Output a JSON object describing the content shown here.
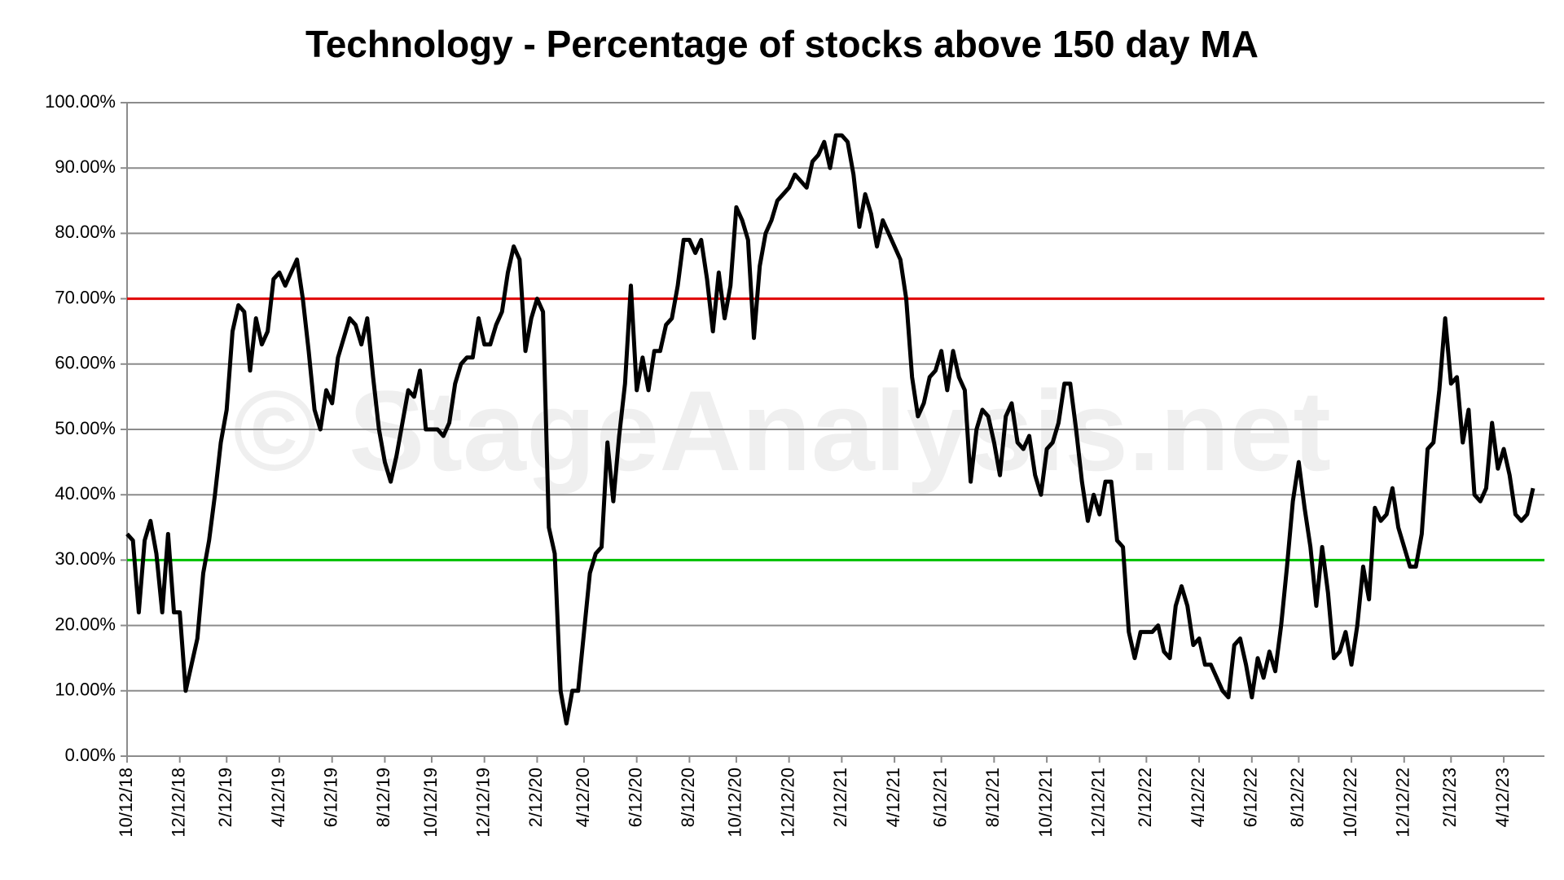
{
  "chart_data": {
    "type": "line",
    "title": "Technology - Percentage of stocks above 150 day MA",
    "watermark": "© StageAnalysis.net",
    "categories": [
      "10/12/18",
      null,
      null,
      null,
      null,
      null,
      null,
      null,
      null,
      "12/12/18",
      null,
      null,
      null,
      null,
      null,
      null,
      null,
      "2/12/19",
      null,
      null,
      null,
      null,
      null,
      null,
      null,
      null,
      "4/12/19",
      null,
      null,
      null,
      null,
      null,
      null,
      null,
      null,
      "6/12/19",
      null,
      null,
      null,
      null,
      null,
      null,
      null,
      null,
      "8/12/19",
      null,
      null,
      null,
      null,
      null,
      null,
      null,
      "10/12/19",
      null,
      null,
      null,
      null,
      null,
      null,
      null,
      null,
      "12/12/19",
      null,
      null,
      null,
      null,
      null,
      null,
      null,
      null,
      "2/12/20",
      null,
      null,
      null,
      null,
      null,
      null,
      null,
      "4/12/20",
      null,
      null,
      null,
      null,
      null,
      null,
      null,
      null,
      "6/12/20",
      null,
      null,
      null,
      null,
      null,
      null,
      null,
      null,
      "8/12/20",
      null,
      null,
      null,
      null,
      null,
      null,
      null,
      "10/12/20",
      null,
      null,
      null,
      null,
      null,
      null,
      null,
      null,
      "12/12/20",
      null,
      null,
      null,
      null,
      null,
      null,
      null,
      null,
      "2/12/21",
      null,
      null,
      null,
      null,
      null,
      null,
      null,
      null,
      "4/12/21",
      null,
      null,
      null,
      null,
      null,
      null,
      null,
      "6/12/21",
      null,
      null,
      null,
      null,
      null,
      null,
      null,
      null,
      "8/12/21",
      null,
      null,
      null,
      null,
      null,
      null,
      null,
      null,
      "10/12/21",
      null,
      null,
      null,
      null,
      null,
      null,
      null,
      null,
      "12/12/21",
      null,
      null,
      null,
      null,
      null,
      null,
      null,
      "2/12/22",
      null,
      null,
      null,
      null,
      null,
      null,
      null,
      null,
      "4/12/22",
      null,
      null,
      null,
      null,
      null,
      null,
      null,
      null,
      "6/12/22",
      null,
      null,
      null,
      null,
      null,
      null,
      null,
      "8/12/22",
      null,
      null,
      null,
      null,
      null,
      null,
      null,
      null,
      "10/12/22",
      null,
      null,
      null,
      null,
      null,
      null,
      null,
      null,
      "12/12/22",
      null,
      null,
      null,
      null,
      null,
      null,
      null,
      "2/12/23",
      null,
      null,
      null,
      null,
      null,
      null,
      null,
      null,
      "4/12/23",
      null,
      null,
      null,
      null,
      null
    ],
    "series": [
      {
        "name": "Technology",
        "color": "#000000",
        "values": [
          34,
          33,
          22,
          33,
          36,
          31,
          22,
          34,
          22,
          22,
          10,
          14,
          18,
          28,
          33,
          40,
          48,
          53,
          65,
          69,
          68,
          59,
          67,
          63,
          65,
          73,
          74,
          72,
          74,
          76,
          70,
          62,
          53,
          50,
          56,
          54,
          61,
          64,
          67,
          66,
          63,
          67,
          58,
          50,
          45,
          42,
          46,
          51,
          56,
          55,
          59,
          50,
          50,
          50,
          49,
          51,
          57,
          60,
          61,
          61,
          67,
          63,
          63,
          66,
          68,
          74,
          78,
          76,
          62,
          67,
          70,
          68,
          35,
          31,
          10,
          5,
          10,
          10,
          19,
          28,
          31,
          32,
          48,
          39,
          49,
          57,
          72,
          56,
          61,
          56,
          62,
          62,
          66,
          67,
          72,
          79,
          79,
          77,
          79,
          73,
          65,
          74,
          67,
          72,
          84,
          82,
          79,
          64,
          75,
          80,
          82,
          85,
          86,
          87,
          89,
          88,
          87,
          91,
          92,
          94,
          90,
          95,
          95,
          94,
          89,
          81,
          86,
          83,
          78,
          82,
          80,
          78,
          76,
          70,
          58,
          52,
          54,
          58,
          59,
          62,
          56,
          62,
          58,
          56,
          42,
          50,
          53,
          52,
          48,
          43,
          52,
          54,
          48,
          47,
          49,
          43,
          40,
          47,
          48,
          51,
          57,
          57,
          50,
          42,
          36,
          40,
          37,
          42,
          42,
          33,
          32,
          19,
          15,
          19,
          19,
          19,
          20,
          16,
          15,
          23,
          26,
          23,
          17,
          18,
          14,
          14,
          12,
          10,
          9,
          17,
          18,
          14,
          9,
          15,
          12,
          16,
          13,
          20,
          29,
          39,
          45,
          38,
          32,
          23,
          32,
          25,
          15,
          16,
          19,
          14,
          20,
          29,
          24,
          38,
          36,
          37,
          41,
          35,
          32,
          29,
          29,
          34,
          47,
          48,
          56,
          67,
          57,
          58,
          48,
          53,
          40,
          39,
          41,
          51,
          44,
          47,
          43,
          37,
          36,
          37,
          41
        ]
      }
    ],
    "reference_lines": [
      {
        "value": 70,
        "color": "#e00000"
      },
      {
        "value": 30,
        "color": "#00c000"
      }
    ],
    "ylim": [
      0,
      100
    ],
    "yticks": [
      {
        "value": 0,
        "label": "0.00%"
      },
      {
        "value": 10,
        "label": "10.00%"
      },
      {
        "value": 20,
        "label": "20.00%"
      },
      {
        "value": 30,
        "label": "30.00%"
      },
      {
        "value": 40,
        "label": "40.00%"
      },
      {
        "value": 50,
        "label": "50.00%"
      },
      {
        "value": 60,
        "label": "60.00%"
      },
      {
        "value": 70,
        "label": "70.00%"
      },
      {
        "value": 80,
        "label": "80.00%"
      },
      {
        "value": 90,
        "label": "90.00%"
      },
      {
        "value": 100,
        "label": "100.00%"
      }
    ],
    "grid": true,
    "legend": false
  }
}
